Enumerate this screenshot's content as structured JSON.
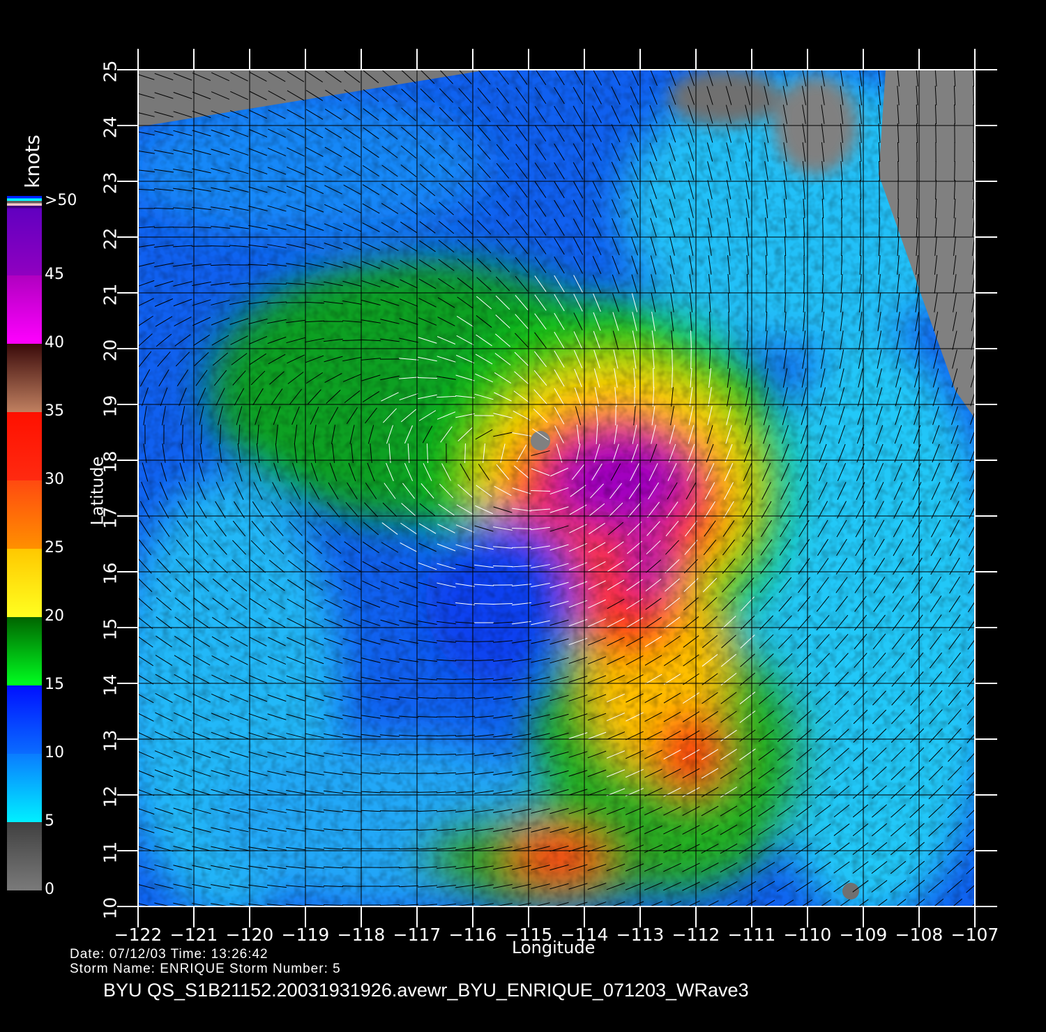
{
  "map": {
    "xlabel": "Longitude",
    "ylabel": "Latitude",
    "lon_range": [
      -122,
      -107
    ],
    "lat_range": [
      10,
      25
    ],
    "lon_ticks": [
      "-122",
      "-121",
      "-120",
      "-119",
      "-118",
      "-117",
      "-116",
      "-115",
      "-114",
      "-113",
      "-112",
      "-111",
      "-110",
      "-109",
      "-108",
      "-107"
    ],
    "lat_ticks": [
      "10",
      "11",
      "12",
      "13",
      "14",
      "15",
      "16",
      "17",
      "18",
      "19",
      "20",
      "21",
      "22",
      "23",
      "24",
      "25"
    ],
    "storm_center": {
      "lon": -114.5,
      "lat": 18.0
    },
    "land_color": "#808080",
    "content": "QuikSCAT wind speed field with wind direction barbs"
  },
  "colorbar": {
    "unit": "knots",
    "labels": [
      "0",
      "5",
      "10",
      "15",
      "20",
      "25",
      "30",
      "35",
      "40",
      "45",
      ">50"
    ],
    "stops": [
      {
        "from": 0,
        "to": 5,
        "top": "#404040",
        "bottom": "#7a7a7a"
      },
      {
        "from": 5,
        "to": 10,
        "top": "#0a7cff",
        "bottom": "#00f0ff"
      },
      {
        "from": 10,
        "to": 15,
        "top": "#0010ff",
        "bottom": "#0a6cff"
      },
      {
        "from": 15,
        "to": 20,
        "top": "#006400",
        "bottom": "#00ff20"
      },
      {
        "from": 20,
        "to": 25,
        "top": "#ffc800",
        "bottom": "#ffff20"
      },
      {
        "from": 25,
        "to": 30,
        "top": "#ff4a10",
        "bottom": "#ff9000"
      },
      {
        "from": 30,
        "to": 35,
        "top": "#ff1000",
        "bottom": "#ff2a10"
      },
      {
        "from": 35,
        "to": 40,
        "top": "#3a0a0a",
        "bottom": "#c08060"
      },
      {
        "from": 40,
        "to": 45,
        "top": "#b000c0",
        "bottom": "#ff00ff"
      },
      {
        "from": 45,
        "to": 50,
        "top": "#6000c0",
        "bottom": "#9000c0"
      }
    ],
    "top_strip_colors": [
      "#0020ff",
      "#00ffff",
      "#606060",
      "#ffc8c8",
      "#400080"
    ]
  },
  "info": {
    "date_line": "Date: 07/12/03   Time: 13:26:42",
    "storm_line": "Storm  Name: ENRIQUE   Storm  Number: 5",
    "title": "BYU  QS_S1B21152.20031931926.avewr_BYU_ENRIQUE_071203_WRave3"
  }
}
